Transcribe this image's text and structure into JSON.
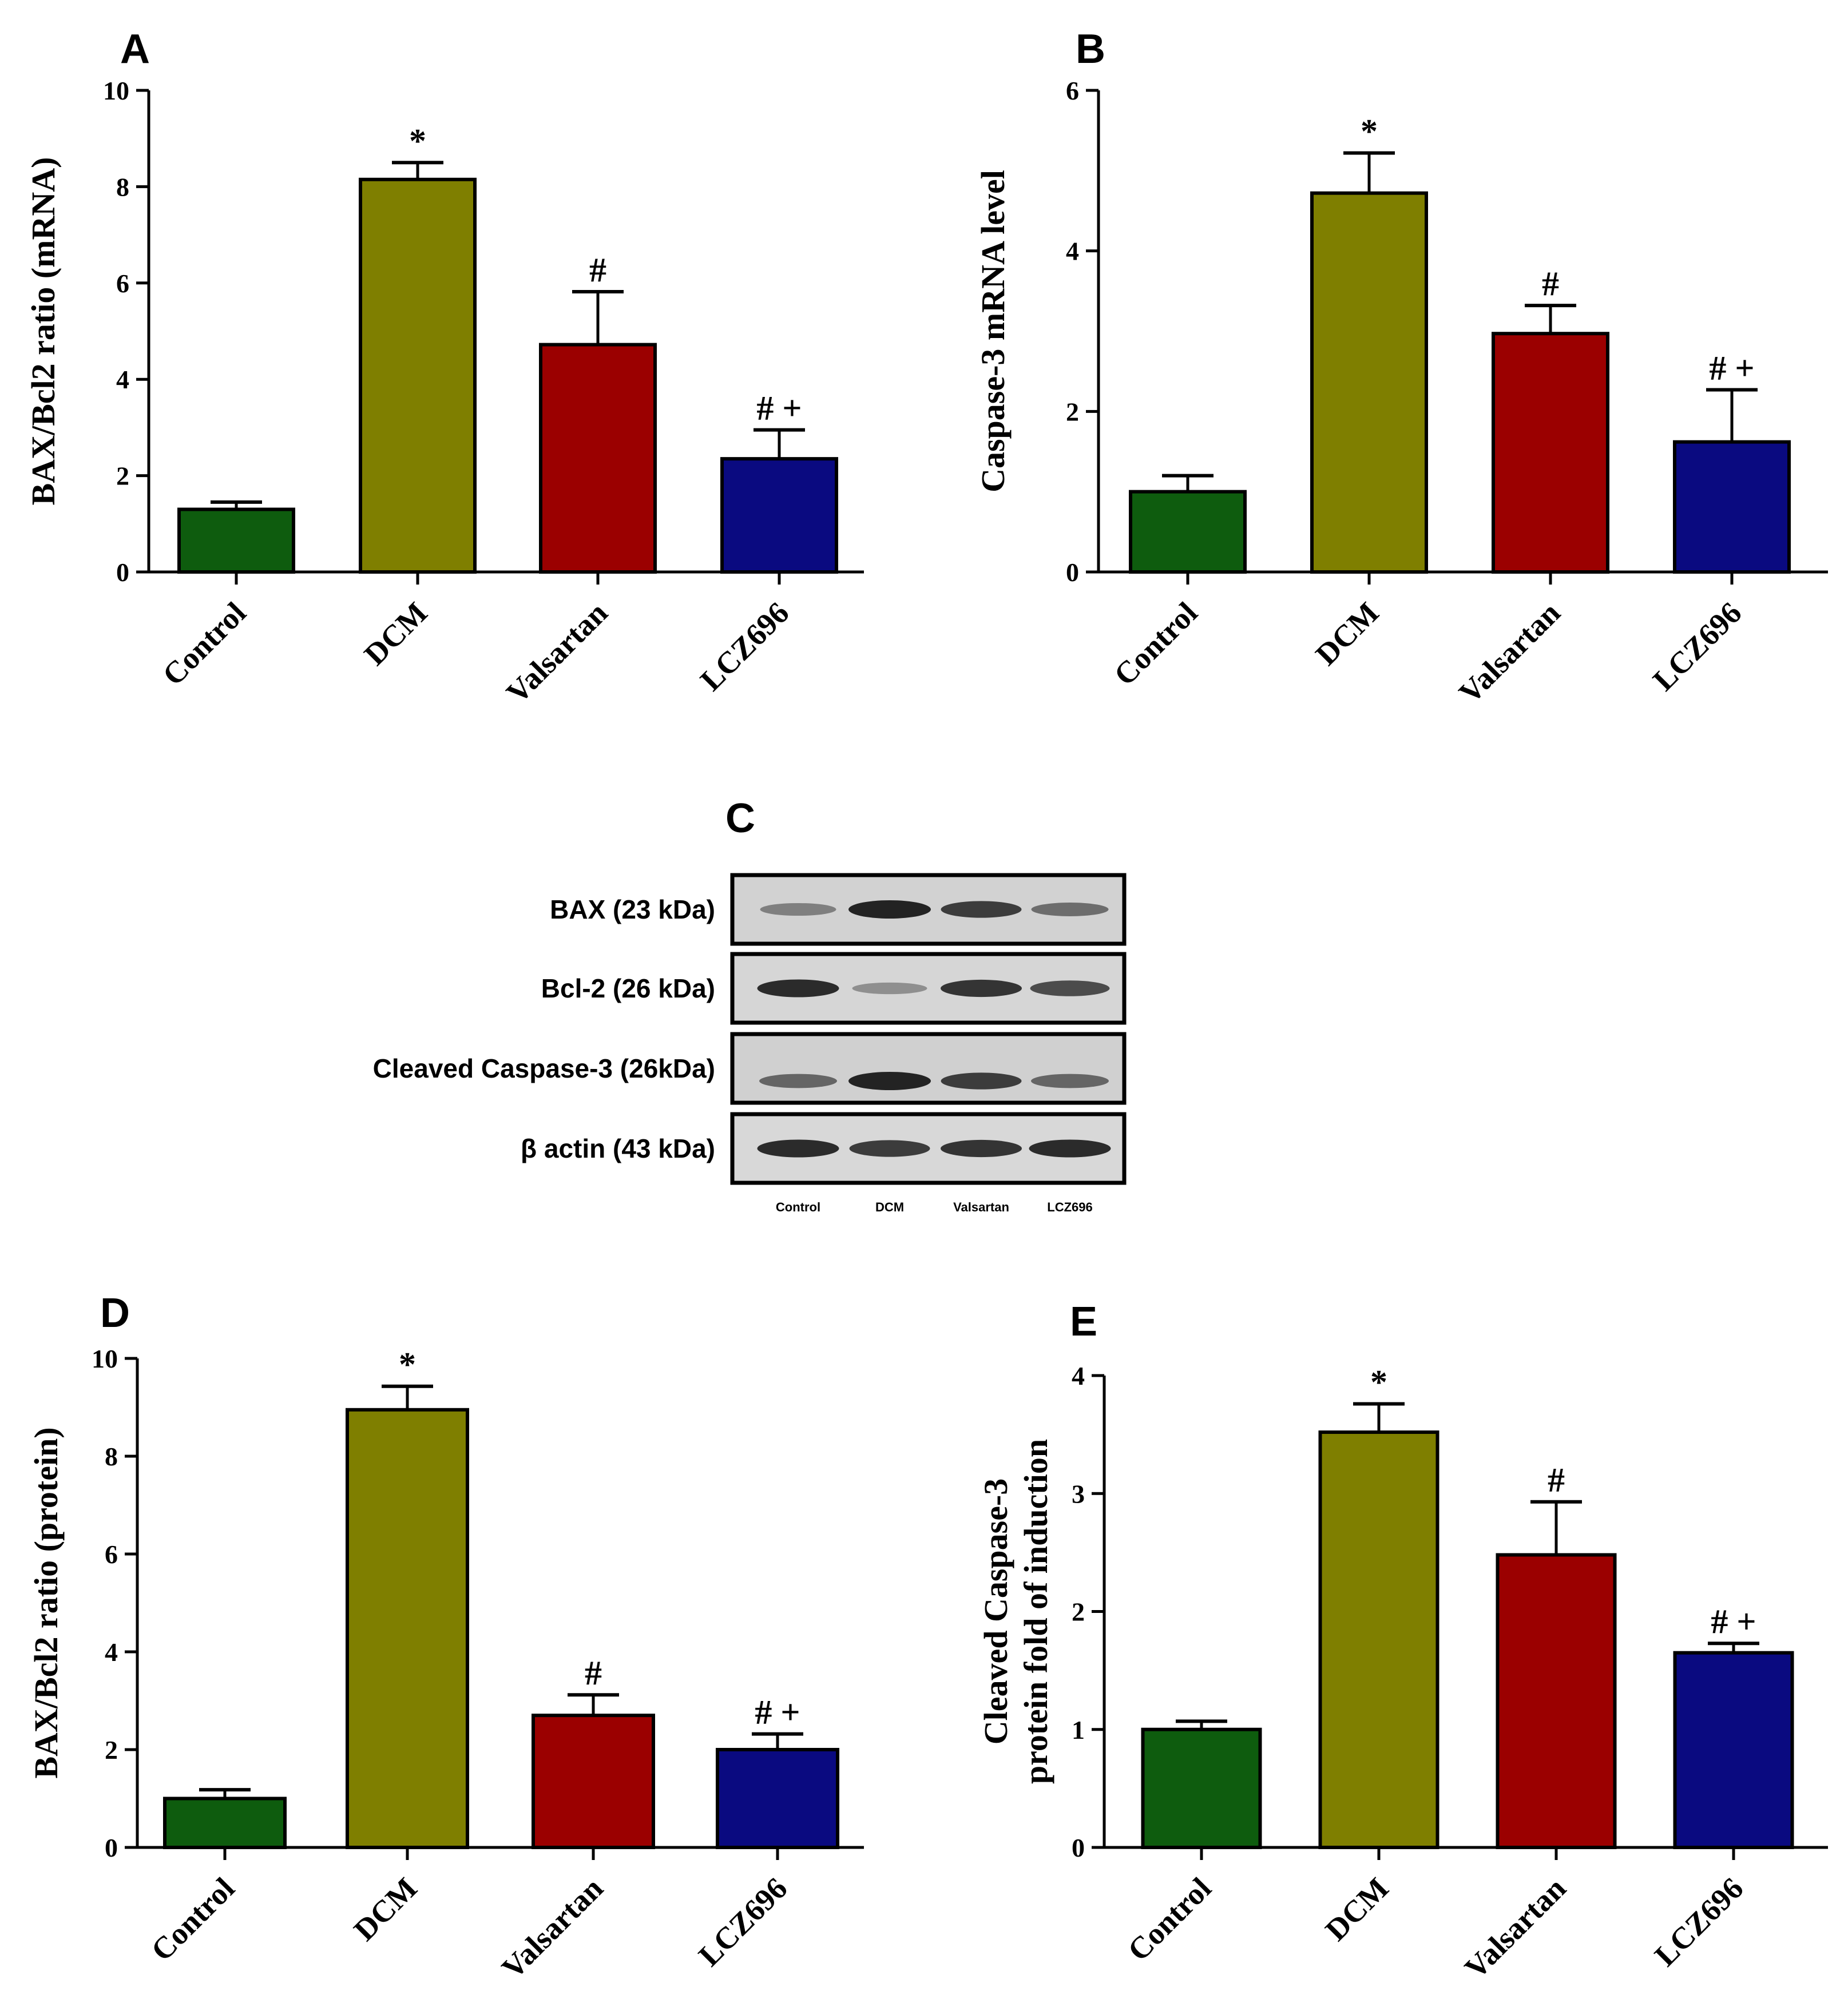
{
  "chart_data": [
    {
      "panel": "A",
      "type": "bar",
      "ylabel": "BAX/Bcl2 ratio (mRNA)",
      "categories": [
        "Control",
        "DCM",
        "Valsartan",
        "LCZ696"
      ],
      "values": [
        1.3,
        8.15,
        4.72,
        2.35
      ],
      "errors": [
        0.15,
        0.35,
        1.1,
        0.6
      ],
      "significance": [
        "",
        "*",
        "#",
        "# +"
      ],
      "colors": [
        "#0e5c0e",
        "#7f7f00",
        "#9b0000",
        "#0a0a80"
      ],
      "ylim": [
        0,
        10
      ],
      "yticks": [
        0,
        2,
        4,
        6,
        8,
        10
      ]
    },
    {
      "panel": "B",
      "type": "bar",
      "ylabel": "Caspase-3 mRNA level",
      "categories": [
        "Control",
        "DCM",
        "Valsartan",
        "LCZ696"
      ],
      "values": [
        1.0,
        4.72,
        2.97,
        1.62
      ],
      "errors": [
        0.2,
        0.5,
        0.35,
        0.65
      ],
      "significance": [
        "",
        "*",
        "#",
        "# +"
      ],
      "colors": [
        "#0e5c0e",
        "#7f7f00",
        "#9b0000",
        "#0a0a80"
      ],
      "ylim": [
        0,
        6
      ],
      "yticks": [
        0,
        2,
        4,
        6
      ]
    },
    {
      "panel": "D",
      "type": "bar",
      "ylabel": "BAX/Bcl2 ratio (protein)",
      "categories": [
        "Control",
        "DCM",
        "Valsartan",
        "LCZ696"
      ],
      "values": [
        1.0,
        8.95,
        2.7,
        2.0
      ],
      "errors": [
        0.18,
        0.48,
        0.42,
        0.32
      ],
      "significance": [
        "",
        "*",
        "#",
        "# +"
      ],
      "colors": [
        "#0e5c0e",
        "#7f7f00",
        "#9b0000",
        "#0a0a80"
      ],
      "ylim": [
        0,
        10
      ],
      "yticks": [
        0,
        2,
        4,
        6,
        8,
        10
      ]
    },
    {
      "panel": "E",
      "type": "bar",
      "ylabel_lines": [
        "Cleaved Caspase-3",
        "protein fold of induction"
      ],
      "categories": [
        "Control",
        "DCM",
        "Valsartan",
        "LCZ696"
      ],
      "values": [
        1.0,
        3.52,
        2.48,
        1.65
      ],
      "errors": [
        0.07,
        0.24,
        0.45,
        0.08
      ],
      "significance": [
        "",
        "*",
        "#",
        "# +"
      ],
      "colors": [
        "#0e5c0e",
        "#7f7f00",
        "#9b0000",
        "#0a0a80"
      ],
      "ylim": [
        0,
        4
      ],
      "yticks": [
        0,
        1,
        2,
        3,
        4
      ]
    }
  ],
  "blot": {
    "panel": "C",
    "rows": [
      {
        "label": "BAX (23 kDa)",
        "intensities": [
          0.45,
          1.0,
          0.85,
          0.55
        ]
      },
      {
        "label": "Bcl-2 (26 kDa)",
        "intensities": [
          0.95,
          0.35,
          0.9,
          0.75
        ]
      },
      {
        "label": "Cleaved Caspase-3 (26kDa)",
        "intensities": [
          0.6,
          1.0,
          0.85,
          0.6
        ]
      },
      {
        "label": "β actin (43 kDa)",
        "intensities": [
          0.95,
          0.85,
          0.9,
          0.95
        ]
      }
    ],
    "lanes": [
      "Control",
      "DCM",
      "Valsartan",
      "LCZ696"
    ]
  }
}
